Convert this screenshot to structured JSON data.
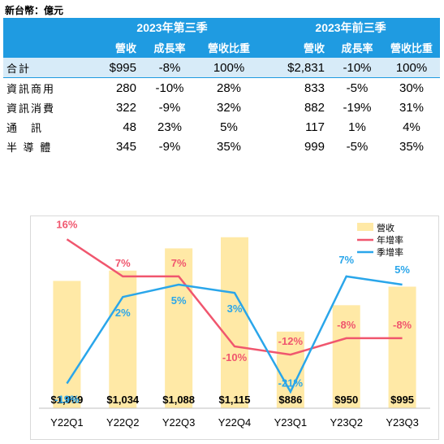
{
  "unit_label": "新台幣：億元",
  "table": {
    "group_headers": [
      "2023年第三季",
      "2023年前三季"
    ],
    "sub_headers": [
      "營收",
      "成長率",
      "營收比重",
      "營收",
      "成長率",
      "營收比重"
    ],
    "rows": [
      {
        "label": "合計",
        "q_rev": "$995",
        "q_growth": "-8%",
        "q_share": "100%",
        "ytd_rev": "$2,831",
        "ytd_growth": "-10%",
        "ytd_share": "100%"
      },
      {
        "label": "資訊商用",
        "q_rev": "280",
        "q_growth": "-10%",
        "q_share": "28%",
        "ytd_rev": "833",
        "ytd_growth": "-5%",
        "ytd_share": "30%"
      },
      {
        "label": "資訊消費",
        "q_rev": "322",
        "q_growth": "-9%",
        "q_share": "32%",
        "ytd_rev": "882",
        "ytd_growth": "-19%",
        "ytd_share": "31%"
      },
      {
        "label": "通　訊",
        "q_rev": "48",
        "q_growth": "23%",
        "q_share": "5%",
        "ytd_rev": "117",
        "ytd_growth": "1%",
        "ytd_share": "4%"
      },
      {
        "label": "半 導 體",
        "q_rev": "345",
        "q_growth": "-9%",
        "q_share": "35%",
        "ytd_rev": "999",
        "ytd_growth": "-5%",
        "ytd_share": "35%"
      }
    ]
  },
  "chart_data": {
    "type": "bar",
    "categories": [
      "Y22Q1",
      "Y22Q2",
      "Y22Q3",
      "Y22Q4",
      "Y23Q1",
      "Y23Q2",
      "Y23Q3"
    ],
    "series": [
      {
        "name": "營收",
        "type": "bar",
        "axis": "left",
        "values": [
          1009,
          1034,
          1088,
          1115,
          886,
          950,
          995
        ],
        "labels": [
          "$1,009",
          "$1,034",
          "$1,088",
          "$1,115",
          "$886",
          "$950",
          "$995"
        ]
      },
      {
        "name": "年增率",
        "type": "line",
        "axis": "right",
        "values": [
          16,
          7,
          7,
          -10,
          -12,
          -8,
          -8
        ],
        "labels": [
          "16%",
          "7%",
          "7%",
          "-10%",
          "-12%",
          "-8%",
          "-8%"
        ]
      },
      {
        "name": "季增率",
        "type": "line",
        "axis": "right",
        "values": [
          -19,
          2,
          5,
          3,
          -21,
          7,
          5
        ],
        "labels": [
          "-19%",
          "2%",
          "5%",
          "3%",
          "-21%",
          "7%",
          "5%"
        ]
      }
    ],
    "ylim_left": [
      700,
      1150
    ],
    "ylim_right": [
      -25,
      20
    ],
    "legend_position": "top-right",
    "colors": {
      "bar": "#ffe9a6",
      "yoy": "#f0566e",
      "qoq": "#2aa6ea"
    }
  }
}
